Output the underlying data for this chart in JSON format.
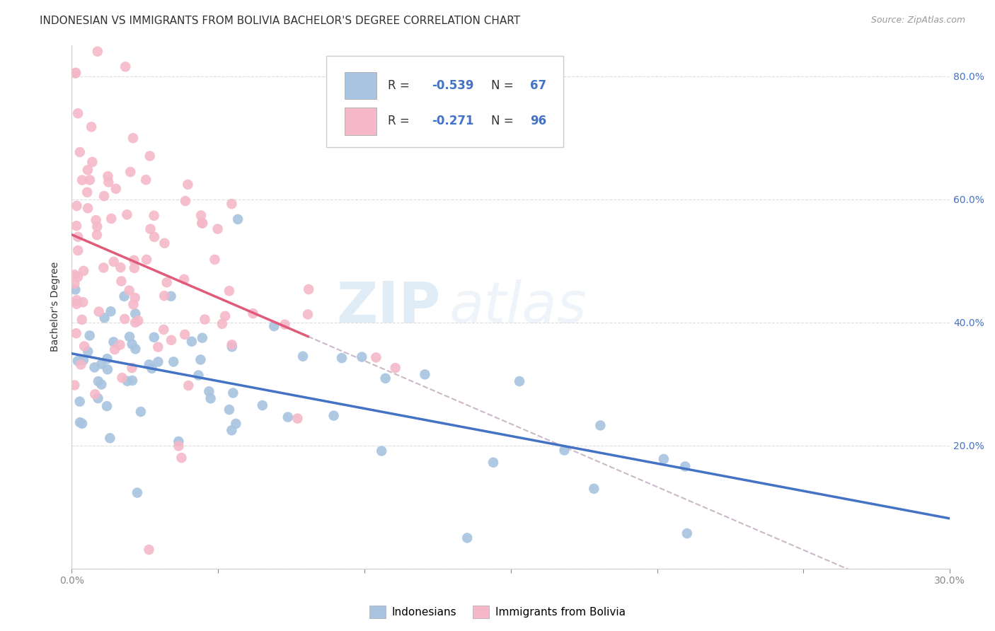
{
  "title": "INDONESIAN VS IMMIGRANTS FROM BOLIVIA BACHELOR'S DEGREE CORRELATION CHART",
  "source": "Source: ZipAtlas.com",
  "ylabel": "Bachelor's Degree",
  "xlim": [
    0.0,
    0.3
  ],
  "ylim": [
    0.0,
    0.85
  ],
  "yticks": [
    0.0,
    0.2,
    0.4,
    0.6,
    0.8
  ],
  "ytick_labels": [
    "",
    "20.0%",
    "40.0%",
    "60.0%",
    "80.0%"
  ],
  "xticks": [
    0.0,
    0.05,
    0.1,
    0.15,
    0.2,
    0.25,
    0.3
  ],
  "xtick_labels": [
    "0.0%",
    "",
    "",
    "",
    "",
    "",
    "30.0%"
  ],
  "blue_color": "#a8c4e0",
  "pink_color": "#f4b8c8",
  "blue_line_color": "#4472c4",
  "pink_line_color": "#e05a7a",
  "trend_dash_color": "#ccb8c8",
  "R_blue": -0.539,
  "N_blue": 67,
  "R_pink": -0.271,
  "N_pink": 96,
  "legend_label_blue": "Indonesians",
  "legend_label_pink": "Immigrants from Bolivia",
  "title_fontsize": 11,
  "watermark_zip": "ZIP",
  "watermark_atlas": "atlas",
  "background_color": "#ffffff",
  "grid_color": "#dddddd",
  "label_color": "#4472c4",
  "text_color": "#333333"
}
